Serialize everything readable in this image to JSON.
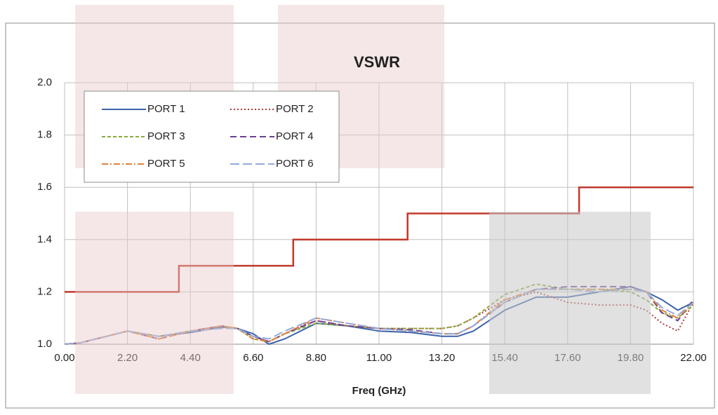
{
  "chart_data": {
    "type": "line",
    "title": "VSWR",
    "xlabel": "Freq (GHz)",
    "x": [
      0,
      0.55,
      1.1,
      2.2,
      3.3,
      4.4,
      5.5,
      6.05,
      6.6,
      7.15,
      7.7,
      8.8,
      9.9,
      11,
      12.1,
      13.2,
      13.75,
      14.3,
      15.4,
      16.5,
      17.6,
      18.7,
      19.8,
      20.35,
      20.9,
      21.45,
      22
    ],
    "series": [
      {
        "name": "PORT 1",
        "color": "#3b63a9",
        "dash": "none",
        "values": [
          1.0,
          1.005,
          1.02,
          1.05,
          1.03,
          1.045,
          1.065,
          1.06,
          1.04,
          1.0,
          1.02,
          1.08,
          1.07,
          1.05,
          1.045,
          1.03,
          1.03,
          1.05,
          1.13,
          1.18,
          1.18,
          1.2,
          1.22,
          1.2,
          1.17,
          1.13,
          1.16
        ]
      },
      {
        "name": "PORT 2",
        "color": "#b5393a",
        "dash": "2,3",
        "values": [
          1.0,
          1.005,
          1.02,
          1.05,
          1.03,
          1.05,
          1.07,
          1.06,
          1.03,
          1.01,
          1.04,
          1.09,
          1.07,
          1.06,
          1.06,
          1.06,
          1.07,
          1.1,
          1.17,
          1.2,
          1.16,
          1.15,
          1.15,
          1.13,
          1.08,
          1.05,
          1.16
        ]
      },
      {
        "name": "PORT 3",
        "color": "#8aab3b",
        "dash": "5,3",
        "values": [
          1.0,
          1.005,
          1.02,
          1.05,
          1.03,
          1.05,
          1.07,
          1.06,
          1.02,
          1.01,
          1.04,
          1.08,
          1.07,
          1.06,
          1.06,
          1.06,
          1.07,
          1.1,
          1.19,
          1.23,
          1.21,
          1.21,
          1.2,
          1.17,
          1.12,
          1.1,
          1.15
        ]
      },
      {
        "name": "PORT 4",
        "color": "#6b408f",
        "dash": "9,5",
        "values": [
          1.0,
          1.005,
          1.02,
          1.05,
          1.02,
          1.05,
          1.07,
          1.06,
          1.03,
          1.01,
          1.04,
          1.09,
          1.07,
          1.06,
          1.055,
          1.04,
          1.04,
          1.07,
          1.16,
          1.21,
          1.22,
          1.22,
          1.22,
          1.2,
          1.12,
          1.09,
          1.17
        ]
      },
      {
        "name": "PORT 5",
        "color": "#e3823c",
        "dash": "9,3,2,3",
        "values": [
          1.0,
          1.005,
          1.02,
          1.05,
          1.02,
          1.05,
          1.07,
          1.06,
          1.02,
          1.01,
          1.04,
          1.1,
          1.08,
          1.06,
          1.05,
          1.04,
          1.04,
          1.07,
          1.17,
          1.21,
          1.21,
          1.21,
          1.21,
          1.2,
          1.13,
          1.1,
          1.16
        ]
      },
      {
        "name": "PORT 6",
        "color": "#93aad9",
        "dash": "13,5",
        "values": [
          1.0,
          1.005,
          1.02,
          1.05,
          1.03,
          1.05,
          1.06,
          1.06,
          1.03,
          1.02,
          1.05,
          1.1,
          1.08,
          1.06,
          1.05,
          1.04,
          1.04,
          1.07,
          1.16,
          1.21,
          1.21,
          1.2,
          1.21,
          1.2,
          1.14,
          1.11,
          1.16
        ]
      },
      {
        "color": "#c0392b",
        "dash": "none",
        "x": [
          0,
          4,
          4,
          8,
          8,
          12,
          12,
          18,
          18,
          22
        ],
        "values": [
          1.2,
          1.2,
          1.3,
          1.3,
          1.4,
          1.4,
          1.5,
          1.5,
          1.6,
          1.6
        ]
      }
    ],
    "xlim": [
      0,
      22
    ],
    "xticks": [
      {
        "value": 0,
        "label": "0.00"
      },
      {
        "value": 2.2,
        "label": "2.20"
      },
      {
        "value": 4.4,
        "label": "4.40"
      },
      {
        "value": 6.6,
        "label": "6.60"
      },
      {
        "value": 8.8,
        "label": "8.80"
      },
      {
        "value": 11,
        "label": "11.00"
      },
      {
        "value": 13.2,
        "label": "13.20"
      },
      {
        "value": 15.4,
        "label": "15.40"
      },
      {
        "value": 17.6,
        "label": "17.60"
      },
      {
        "value": 19.8,
        "label": "19.80"
      },
      {
        "value": 22,
        "label": "22.00"
      }
    ],
    "ylim": [
      1,
      2
    ],
    "yticks": [
      {
        "value": 1,
        "label": "1.0"
      },
      1.2,
      1.4,
      1.6,
      1.8,
      {
        "value": 2,
        "label": "2.0"
      }
    ],
    "grid": true
  }
}
